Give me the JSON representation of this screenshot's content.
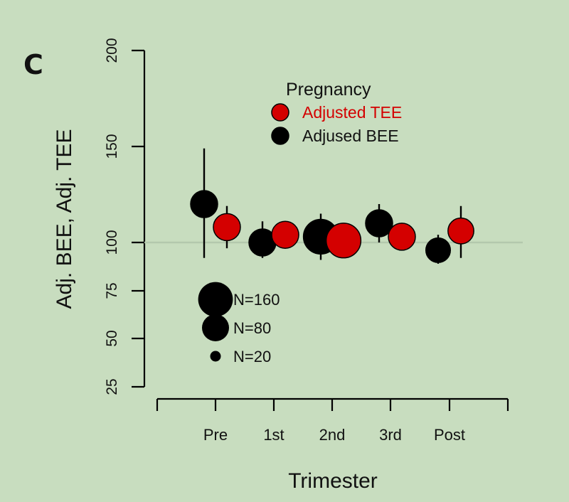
{
  "panel_label": "C",
  "chart_data": {
    "type": "scatter",
    "xlabel": "Trimester",
    "ylabel": "Adj. BEE, Adj. TEE",
    "categories": [
      "Pre",
      "1st",
      "2nd",
      "3rd",
      "Post"
    ],
    "ylim": [
      25,
      200
    ],
    "yticks": [
      25,
      50,
      75,
      100,
      150,
      200
    ],
    "reference_line": 100,
    "legend": {
      "title": "Pregnancy",
      "position": "top-right"
    },
    "series": [
      {
        "name": "Adjused BEE",
        "color": "#000000",
        "values": [
          120,
          100,
          103,
          110,
          96
        ],
        "lower": [
          92,
          92,
          91,
          100,
          89
        ],
        "upper": [
          149,
          111,
          115,
          120,
          104
        ],
        "n": [
          80,
          80,
          160,
          80,
          60
        ]
      },
      {
        "name": "Adjusted TEE",
        "color": "#d40000",
        "values": [
          108,
          104,
          101,
          103,
          106
        ],
        "lower": [
          97,
          101,
          100,
          97,
          92
        ],
        "upper": [
          119,
          106,
          103,
          109,
          119
        ],
        "n": [
          80,
          80,
          160,
          80,
          70
        ]
      }
    ],
    "size_legend": [
      {
        "label": "N=160",
        "n": 160
      },
      {
        "label": "N=80",
        "n": 80
      },
      {
        "label": "N=20",
        "n": 20
      }
    ]
  }
}
